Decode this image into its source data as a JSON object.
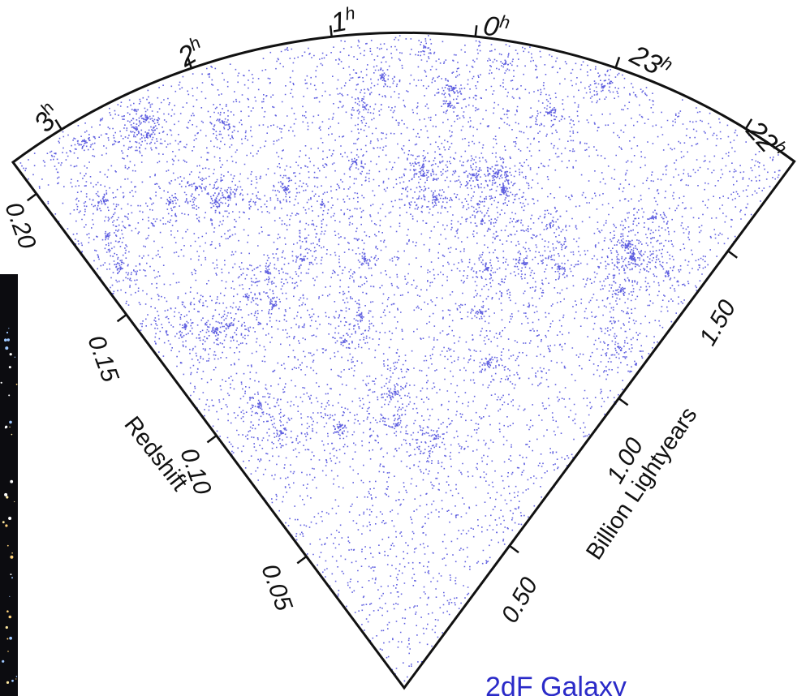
{
  "figure": {
    "ra_labels": [
      {
        "hour": "3",
        "suffix": "h"
      },
      {
        "hour": "2",
        "suffix": "h"
      },
      {
        "hour": "1",
        "suffix": "h"
      },
      {
        "hour": "0",
        "suffix": "h"
      },
      {
        "hour": "23",
        "suffix": "h"
      },
      {
        "hour": "22",
        "suffix": "h"
      }
    ],
    "redshift_axis": {
      "title": "Redshift",
      "ticks": [
        "0.05",
        "0.10",
        "0.15",
        "0.20"
      ]
    },
    "distance_axis": {
      "title": "Billion Lightyears",
      "ticks": [
        "0.50",
        "1.00",
        "1.50"
      ]
    },
    "caption": "2dF Galaxy",
    "point_color": "#2b2bd6",
    "frame_color": "#111111"
  }
}
